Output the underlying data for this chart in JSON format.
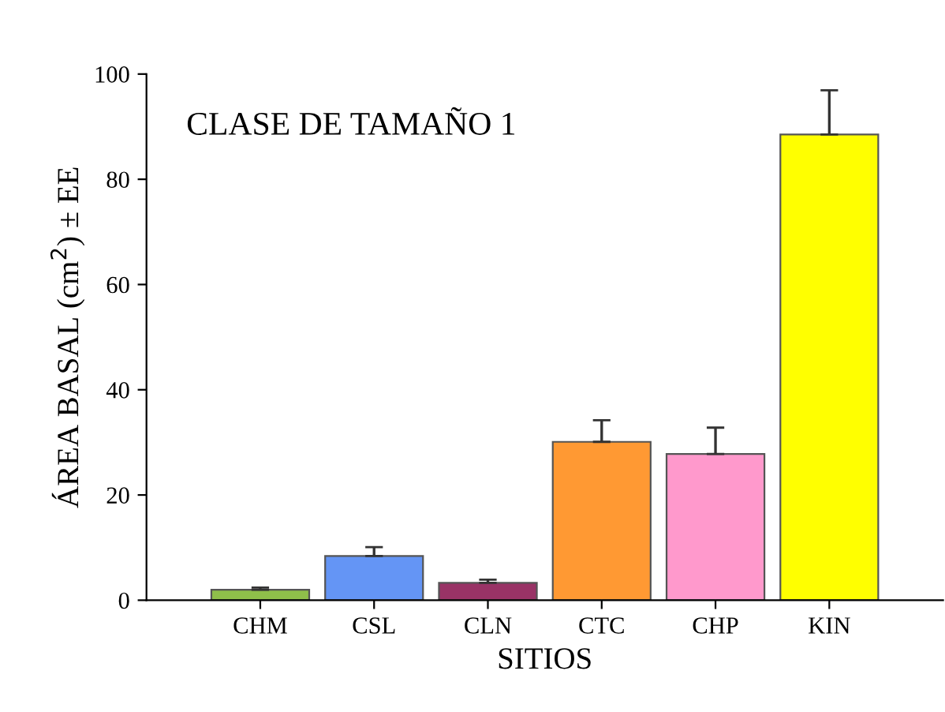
{
  "chart_data": {
    "type": "bar",
    "title": "CLASE DE TAMAÑO 1",
    "xlabel": "SITIOS",
    "ylabel": "ÁREA BASAL (cm$^{2}$) ± EE",
    "categories": [
      "CHM",
      "CSL",
      "CLN",
      "CTC",
      "CHP",
      "KIN"
    ],
    "values": [
      2.0,
      8.4,
      3.3,
      30.1,
      27.8,
      88.5
    ],
    "errors": [
      [
        2.0,
        2.4
      ],
      [
        8.4,
        10.1
      ],
      [
        3.3,
        3.9
      ],
      [
        30.1,
        34.2
      ],
      [
        27.8,
        32.8
      ],
      [
        88.5,
        96.9
      ]
    ],
    "colors": [
      "#8fbf4a",
      "#6495f5",
      "#993366",
      "#ff9933",
      "#ff99cc",
      "#ffff00"
    ],
    "ylim": [
      0,
      100
    ],
    "yticks": [
      0,
      20,
      40,
      60,
      80,
      100
    ],
    "grid": false,
    "legend": false
  }
}
